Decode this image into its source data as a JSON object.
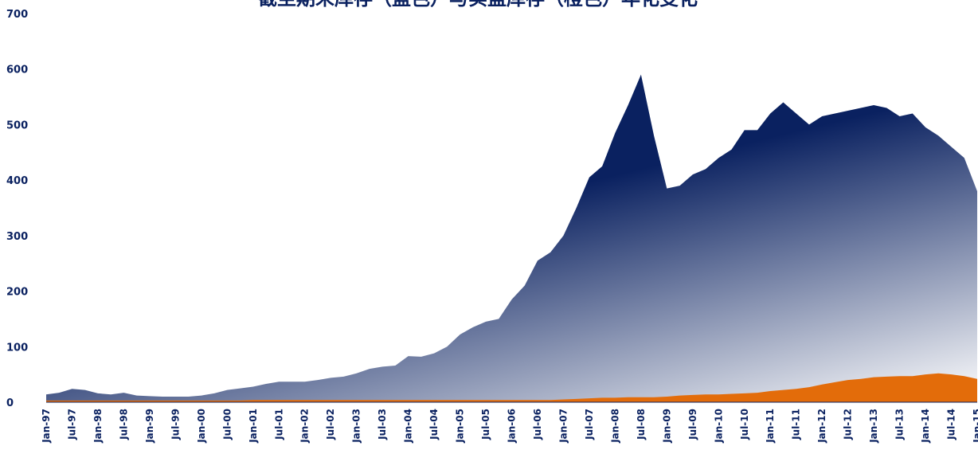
{
  "chart_data": {
    "type": "area",
    "title": "截至期末库存（蓝色）与实盘库存（橙色）年化变化",
    "categories": [
      "Jan-97",
      null,
      "Jul-97",
      null,
      "Jan-98",
      null,
      "Jul-98",
      null,
      "Jan-99",
      null,
      "Jul-99",
      null,
      "Jan-00",
      null,
      "Jul-00",
      null,
      "Jan-01",
      null,
      "Jul-01",
      null,
      "Jan-02",
      null,
      "Jul-02",
      null,
      "Jan-03",
      null,
      "Jul-03",
      null,
      "Jan-04",
      null,
      "Jul-04",
      null,
      "Jan-05",
      null,
      "Jul-05",
      null,
      "Jan-06",
      null,
      "Jul-06",
      null,
      "Jan-07",
      null,
      "Jul-07",
      null,
      "Jan-08",
      null,
      "Jul-08",
      null,
      "Jan-09",
      null,
      "Jul-09",
      null,
      "Jan-10",
      null,
      "Jul-10",
      null,
      "Jan-11",
      null,
      "Jul-11",
      null,
      "Jan-12",
      null,
      "Jul-12",
      null,
      "Jan-13",
      null,
      "Jul-13",
      null,
      "Jan-14",
      null,
      "Jul-14",
      null,
      "Jan-15"
    ],
    "series": [
      {
        "color": "#0a2160",
        "values": [
          14,
          17,
          24,
          22,
          16,
          14,
          17,
          12,
          11,
          10,
          10,
          10,
          12,
          16,
          22,
          25,
          28,
          33,
          37,
          37,
          37,
          40,
          44,
          46,
          52,
          60,
          64,
          66,
          83,
          82,
          88,
          100,
          122,
          135,
          145,
          150,
          185,
          210,
          255,
          270,
          300,
          350,
          405,
          425,
          485,
          535,
          590,
          480,
          385,
          390,
          410,
          420,
          440,
          455,
          490,
          490,
          520,
          540,
          520,
          500,
          515,
          520,
          525,
          530,
          535,
          530,
          515,
          520,
          495,
          480,
          460,
          440,
          380
        ]
      },
      {
        "color": "#e36c0a",
        "values": [
          3,
          3,
          3,
          3,
          3,
          3,
          3,
          3,
          3,
          3,
          3,
          3,
          3,
          3,
          3,
          3,
          4,
          4,
          4,
          4,
          4,
          4,
          4,
          4,
          4,
          4,
          4,
          4,
          4,
          4,
          4,
          4,
          4,
          4,
          4,
          4,
          4,
          4,
          4,
          4,
          5,
          6,
          7,
          8,
          8,
          9,
          9,
          9,
          10,
          12,
          13,
          14,
          14,
          15,
          16,
          17,
          20,
          22,
          24,
          27,
          32,
          36,
          40,
          42,
          45,
          46,
          47,
          47,
          50,
          52,
          50,
          47,
          42
        ]
      }
    ],
    "ylim": [
      0,
      700
    ],
    "yticks": [
      0,
      100,
      200,
      300,
      400,
      500,
      600,
      700
    ]
  }
}
